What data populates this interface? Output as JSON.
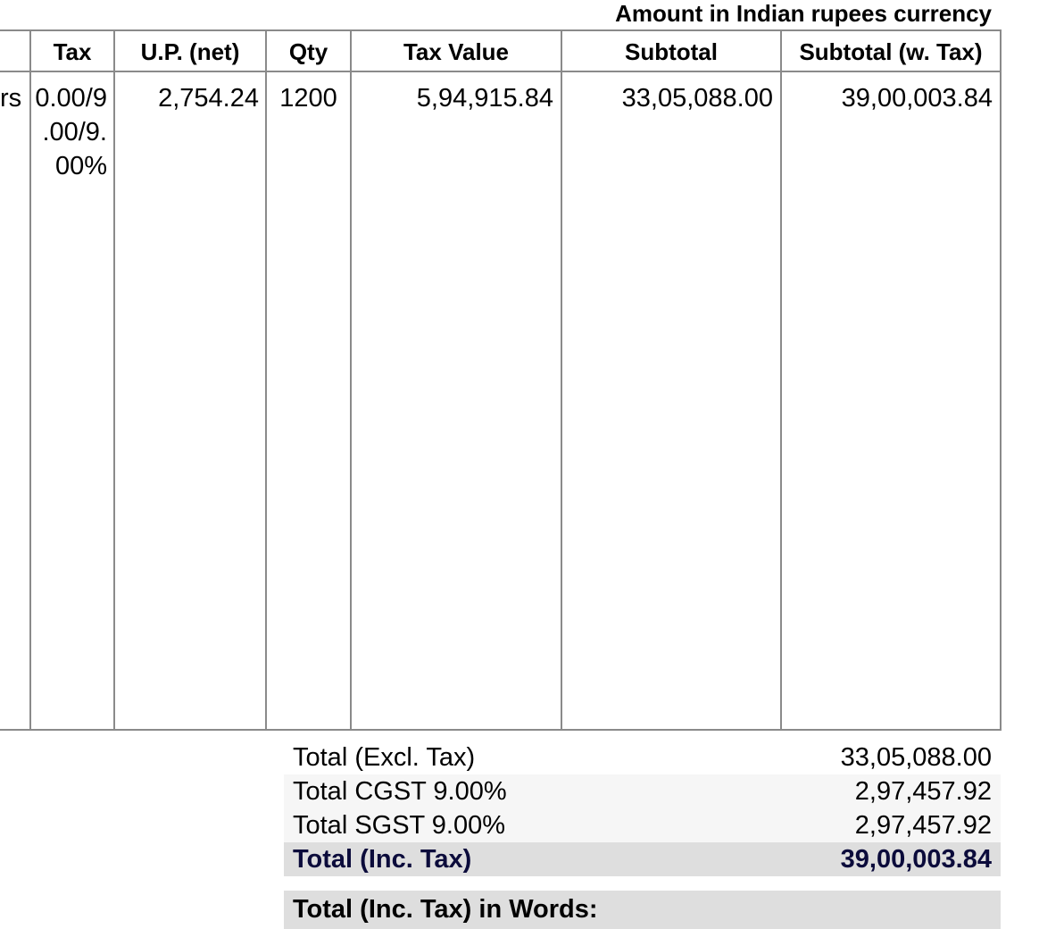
{
  "document": {
    "currency_note": "Amount in Indian rupees currency"
  },
  "items_table": {
    "headers": {
      "tax": "Tax",
      "unit_price": "U.P. (net)",
      "qty": "Qty",
      "tax_value": "Tax Value",
      "subtotal": "Subtotal",
      "subtotal_with_tax": "Subtotal (w. Tax)"
    },
    "rows": [
      {
        "description_fragment": "rs",
        "tax_lines": [
          "0.00/9",
          ".00/9.",
          "00%"
        ],
        "unit_price": "2,754.24",
        "qty": "1200",
        "tax_value": "5,94,915.84",
        "subtotal": "33,05,088.00",
        "subtotal_with_tax": "39,00,003.84"
      }
    ]
  },
  "totals": [
    {
      "label": "Total (Excl. Tax)",
      "value": "33,05,088.00"
    },
    {
      "label": "Total CGST 9.00%",
      "value": "2,97,457.92"
    },
    {
      "label": "Total SGST 9.00%",
      "value": "2,97,457.92"
    },
    {
      "label": "Total (Inc. Tax)",
      "value": "39,00,003.84"
    }
  ],
  "amount_in_words": {
    "label": "Total (Inc. Tax) in Words:"
  },
  "colors": {
    "grid": "#8a8a8a",
    "total_row_bg": "#dedede",
    "tax_row_bg": "#f6f6f6",
    "grand_total_text": "#0b0b3b"
  }
}
